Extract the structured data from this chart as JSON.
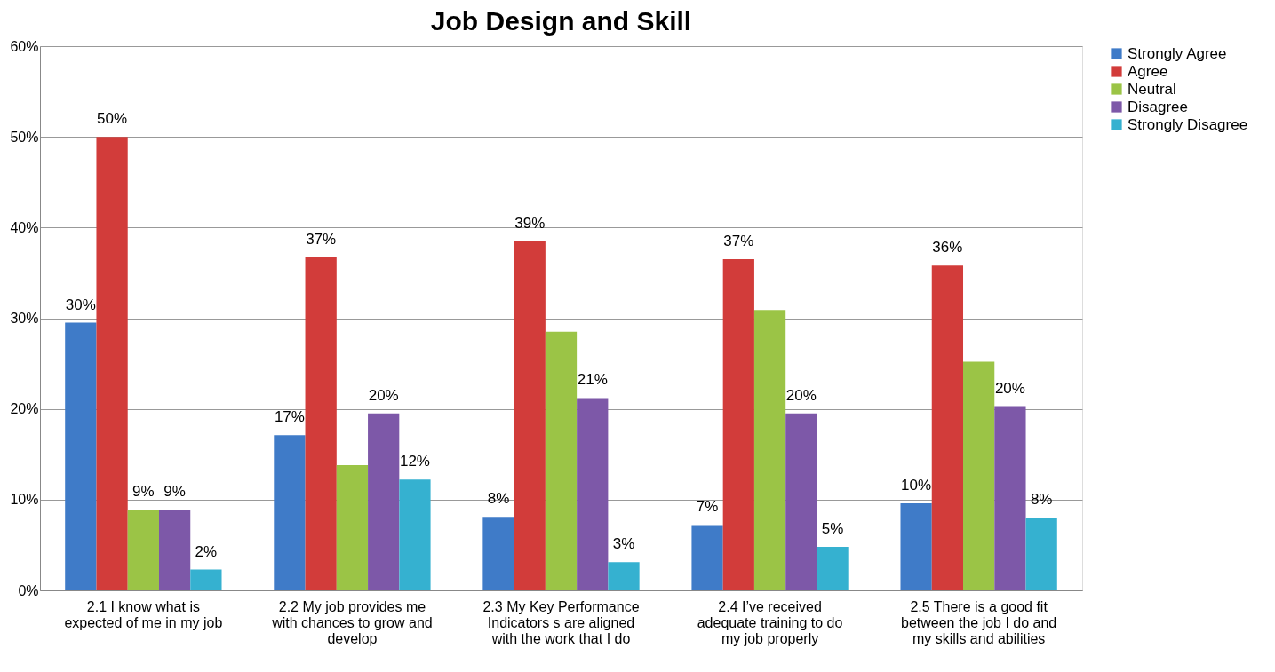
{
  "chart_data": {
    "type": "bar",
    "title": "Job Design and Skill",
    "categories": [
      "2.1 I know what is expected of me in my job",
      "2.2 My job provides me with chances to grow and develop",
      "2.3 My Key Performance Indicators s are aligned with the work that I do",
      "2.4 I’ve received adequate training to do my job properly",
      "2.5 There is a good fit between the job I do and my skills and abilities"
    ],
    "series": [
      {
        "name": "Strongly Agree",
        "color": "#3f7bc8",
        "values": [
          29.5,
          17.1,
          8.1,
          7.2,
          9.6
        ],
        "value_labels": [
          "30%",
          "17%",
          "8%",
          "7%",
          "10%"
        ]
      },
      {
        "name": "Agree",
        "color": "#d23c3a",
        "values": [
          50,
          36.7,
          38.5,
          36.5,
          35.8
        ],
        "value_labels": [
          "50%",
          "37%",
          "39%",
          "37%",
          "36%"
        ]
      },
      {
        "name": "Neutral",
        "color": "#9bc446",
        "values": [
          8.9,
          13.8,
          28.5,
          30.9,
          25.2
        ],
        "value_labels": [
          "9%",
          null,
          null,
          null,
          null
        ]
      },
      {
        "name": "Disagree",
        "color": "#7d58a8",
        "values": [
          8.9,
          19.5,
          21.2,
          19.5,
          20.3
        ],
        "value_labels": [
          "9%",
          "20%",
          "21%",
          "20%",
          "20%"
        ]
      },
      {
        "name": "Strongly Disagree",
        "color": "#35b1d0",
        "values": [
          2.3,
          12.2,
          3.1,
          4.8,
          8.0
        ],
        "value_labels": [
          "2%",
          "12%",
          "3%",
          "5%",
          "8%"
        ]
      }
    ],
    "ylim": [
      0,
      60
    ],
    "yticks": [
      {
        "value": 0,
        "label": "0%"
      },
      {
        "value": 10,
        "label": "10%"
      },
      {
        "value": 20,
        "label": "20%"
      },
      {
        "value": 30,
        "label": "30%"
      },
      {
        "value": 40,
        "label": "40%"
      },
      {
        "value": 50,
        "label": "50%"
      },
      {
        "value": 60,
        "label": "60%"
      }
    ],
    "grid": "y",
    "legend": "right"
  }
}
